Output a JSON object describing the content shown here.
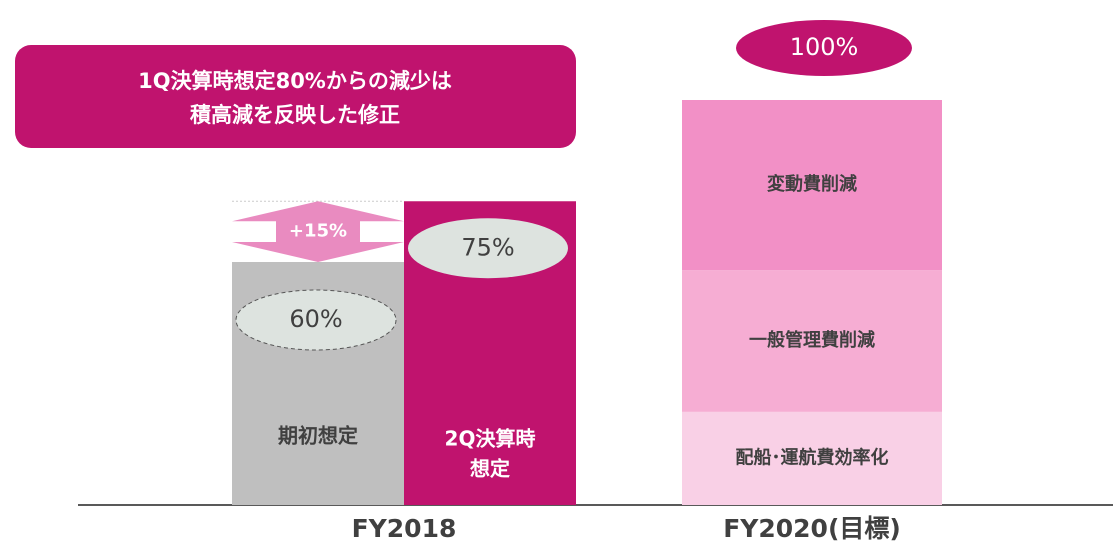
{
  "chart_data": {
    "type": "bar",
    "callout": [
      "1Q決算時想定80%からの減少は",
      "積高減を反映した修正"
    ],
    "categories": [
      "FY2018",
      "FY2020(目標)"
    ],
    "bars": [
      {
        "name": [
          "期初想定"
        ],
        "value": 60,
        "value_label": "60%",
        "color": "#bfbfbf"
      },
      {
        "name": [
          "2Q決算時",
          "想定"
        ],
        "value": 75,
        "value_label": "75%",
        "color": "#c0136e"
      }
    ],
    "difference_label": "+15%",
    "stack": {
      "total_label": "100%",
      "series": [
        {
          "name": "配船･運航費効率化",
          "value": 23,
          "color": "#f9d0e6"
        },
        {
          "name": "一般管理費削減",
          "value": 35,
          "color": "#f6add3"
        },
        {
          "name": "変動費削減",
          "value": 42,
          "color": "#f290c6"
        }
      ]
    },
    "ylim": [
      0,
      100
    ]
  }
}
